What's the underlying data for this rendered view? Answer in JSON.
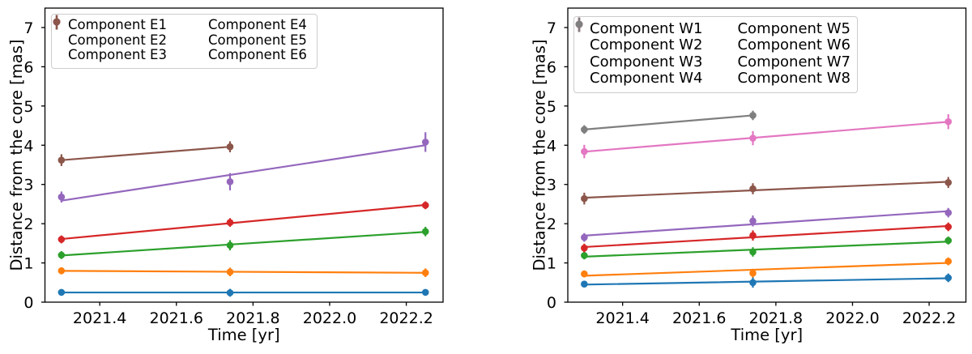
{
  "figure": {
    "background": "#ffffff",
    "spine_color": "#000000",
    "text_color": "#000000"
  },
  "chart_data": [
    {
      "type": "line",
      "name": "east-jet-components",
      "title": "",
      "xlabel": "Time [yr]",
      "ylabel": "Distance from the core [mas]",
      "xlim": [
        2021.257,
        2022.296
      ],
      "ylim": [
        0,
        7.495
      ],
      "xticks": [
        "2021.4",
        "2021.6",
        "2021.8",
        "2022.0",
        "2022.2"
      ],
      "yticks": [
        "0",
        "1",
        "2",
        "3",
        "4",
        "5",
        "6",
        "7"
      ],
      "grid": false,
      "legend": {
        "location": "upper center",
        "columns": 2
      },
      "fit": "linear",
      "x": [
        2021.3,
        2021.74,
        2022.25
      ],
      "series": [
        {
          "name": "Component E1",
          "color": "#1f77b4",
          "values": [
            0.25,
            0.24,
            0.25
          ],
          "yerr": [
            0.08,
            0.1,
            0.08
          ]
        },
        {
          "name": "Component E2",
          "color": "#ff7f0e",
          "values": [
            0.8,
            0.77,
            0.75
          ],
          "yerr": [
            0.09,
            0.11,
            0.11
          ]
        },
        {
          "name": "Component E3",
          "color": "#2ca02c",
          "values": [
            1.2,
            1.45,
            1.8
          ],
          "yerr": [
            0.1,
            0.13,
            0.12
          ]
        },
        {
          "name": "Component E4",
          "color": "#d62728",
          "values": [
            1.6,
            2.03,
            2.47
          ],
          "yerr": [
            0.1,
            0.11,
            0.1
          ]
        },
        {
          "name": "Component E5",
          "color": "#9467bd",
          "values": [
            2.68,
            3.07,
            4.08
          ],
          "yerr": [
            0.14,
            0.22,
            0.25
          ]
        },
        {
          "name": "Component E6",
          "color": "#8c564b",
          "values": [
            3.62,
            3.96,
            null
          ],
          "yerr": [
            0.15,
            0.14,
            null
          ]
        }
      ]
    },
    {
      "type": "line",
      "name": "west-jet-components",
      "title": "",
      "xlabel": "Time [yr]",
      "ylabel": "Distance from the core [mas]",
      "xlim": [
        2021.257,
        2022.296
      ],
      "ylim": [
        0,
        7.495
      ],
      "xticks": [
        "2021.4",
        "2021.6",
        "2021.8",
        "2022.0",
        "2022.2"
      ],
      "yticks": [
        "0",
        "1",
        "2",
        "3",
        "4",
        "5",
        "6",
        "7"
      ],
      "grid": false,
      "legend": {
        "location": "upper center",
        "columns": 2
      },
      "fit": "linear",
      "x": [
        2021.3,
        2021.74,
        2022.25
      ],
      "series": [
        {
          "name": "Component W1",
          "color": "#1f77b4",
          "values": [
            0.46,
            0.5,
            0.62
          ],
          "yerr": [
            0.08,
            0.13,
            0.11
          ]
        },
        {
          "name": "Component W2",
          "color": "#ff7f0e",
          "values": [
            0.72,
            0.74,
            1.04
          ],
          "yerr": [
            0.09,
            0.11,
            0.1
          ]
        },
        {
          "name": "Component W3",
          "color": "#2ca02c",
          "values": [
            1.19,
            1.28,
            1.57
          ],
          "yerr": [
            0.1,
            0.12,
            0.1
          ]
        },
        {
          "name": "Component W4",
          "color": "#d62728",
          "values": [
            1.38,
            1.7,
            1.92
          ],
          "yerr": [
            0.11,
            0.13,
            0.11
          ]
        },
        {
          "name": "Component W5",
          "color": "#9467bd",
          "values": [
            1.65,
            2.07,
            2.28
          ],
          "yerr": [
            0.11,
            0.14,
            0.12
          ]
        },
        {
          "name": "Component W6",
          "color": "#8c564b",
          "values": [
            2.64,
            2.89,
            3.05
          ],
          "yerr": [
            0.15,
            0.14,
            0.14
          ]
        },
        {
          "name": "Component W7",
          "color": "#e377c2",
          "values": [
            3.84,
            4.18,
            4.6
          ],
          "yerr": [
            0.17,
            0.18,
            0.19
          ]
        },
        {
          "name": "Component W8",
          "color": "#7f7f7f",
          "values": [
            4.4,
            4.76,
            null
          ],
          "yerr": [
            0.11,
            0.12,
            null
          ]
        }
      ]
    }
  ]
}
